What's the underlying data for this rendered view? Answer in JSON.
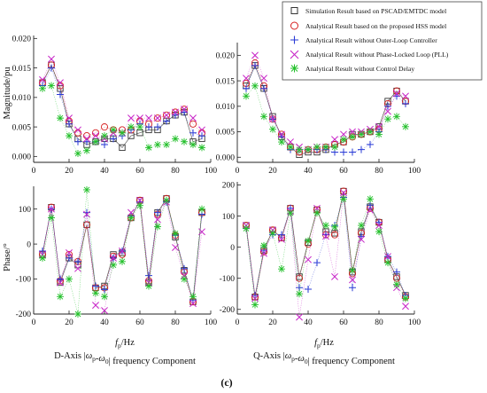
{
  "chart_data": {
    "type": "scatter",
    "legend": {
      "placement": "top-right",
      "entries": [
        {
          "label": "Simulation Result based on PSCAD/EMTDC model",
          "color": "#333333",
          "marker": "square"
        },
        {
          "label": "Analytical Result based on the proposed HSS model",
          "color": "#d62020",
          "marker": "circle"
        },
        {
          "label": "Analytical Result without Outer-Loop Controller",
          "color": "#2a3bd6",
          "marker": "plus"
        },
        {
          "label": "Analytical Result without Phase-Locked Loop (PLL)",
          "color": "#c724c7",
          "marker": "x"
        },
        {
          "label": "Analytical Result without Control Delay",
          "color": "#22c02a",
          "marker": "star"
        }
      ]
    },
    "panel_letter": "(c)",
    "x": [
      5,
      10,
      15,
      20,
      25,
      30,
      35,
      40,
      45,
      50,
      55,
      60,
      65,
      70,
      75,
      80,
      85,
      90,
      95
    ],
    "panels": [
      {
        "id": "d-mag",
        "ylabel": "Magnitude/pu",
        "xlabel": "",
        "xlim": [
          0,
          100
        ],
        "ylim": [
          -0.001,
          0.0205
        ],
        "yticks": [
          0,
          0.005,
          0.01,
          0.015,
          0.02
        ],
        "ytick_labels": [
          "0.000",
          "0.005",
          "0.010",
          "0.015",
          "0.020"
        ],
        "xticks": [
          0,
          20,
          40,
          60,
          80,
          100
        ],
        "xtick_labels": [
          "0",
          "20",
          "40",
          "60",
          "80",
          "100"
        ],
        "series": [
          {
            "values": [
              0.0125,
              0.0155,
              0.0115,
              0.0055,
              0.003,
              0.002,
              0.0025,
              0.003,
              0.003,
              0.0015,
              0.0035,
              0.004,
              0.0045,
              0.0045,
              0.006,
              0.007,
              0.0075,
              0.0025,
              0.003
            ]
          },
          {
            "values": [
              0.0125,
              0.0155,
              0.012,
              0.006,
              0.004,
              0.0035,
              0.004,
              0.005,
              0.0045,
              0.0045,
              0.0045,
              0.006,
              0.0055,
              0.0065,
              0.007,
              0.0075,
              0.008,
              0.0055,
              0.004
            ]
          },
          {
            "values": [
              0.012,
              0.015,
              0.0105,
              0.0055,
              0.0025,
              0.0025,
              0.0025,
              0.002,
              0.003,
              0.0035,
              0.0045,
              0.0055,
              0.005,
              0.005,
              0.006,
              0.007,
              0.0075,
              0.004,
              0.0035
            ]
          },
          {
            "values": [
              0.013,
              0.0165,
              0.0125,
              0.0065,
              0.0045,
              0.003,
              0.0035,
              0.003,
              0.004,
              0.004,
              0.0065,
              0.0065,
              0.0065,
              0.0065,
              0.007,
              0.0075,
              0.008,
              0.0065,
              0.0045
            ]
          },
          {
            "values": [
              0.0115,
              0.012,
              0.0065,
              0.0035,
              0.0005,
              0.001,
              0.0025,
              0.0035,
              0.0045,
              0.004,
              0.005,
              0.005,
              0.0015,
              0.002,
              0.002,
              0.003,
              0.0025,
              0.002,
              0.0015
            ]
          }
        ]
      },
      {
        "id": "q-mag",
        "ylabel": "",
        "xlabel": "",
        "xlim": [
          0,
          100
        ],
        "ylim": [
          -0.001,
          0.0225
        ],
        "yticks": [
          0,
          0.005,
          0.01,
          0.015,
          0.02
        ],
        "ytick_labels": [
          "0.000",
          "0.005",
          "0.010",
          "0.015",
          "0.020"
        ],
        "xticks": [
          0,
          20,
          40,
          60,
          80,
          100
        ],
        "xtick_labels": [
          "0",
          "20",
          "40",
          "60",
          "80",
          "100"
        ],
        "series": [
          {
            "values": [
              0.014,
              0.018,
              0.0135,
              0.008,
              0.004,
              0.002,
              0.0005,
              0.001,
              0.001,
              0.0015,
              0.0025,
              0.003,
              0.0045,
              0.0045,
              0.005,
              0.006,
              0.011,
              0.013,
              0.011
            ]
          },
          {
            "values": [
              0.0145,
              0.0185,
              0.014,
              0.0075,
              0.0045,
              0.002,
              0.001,
              0.0015,
              0.0015,
              0.002,
              0.0025,
              0.003,
              0.004,
              0.0045,
              0.005,
              0.0055,
              0.0105,
              0.013,
              0.011
            ]
          },
          {
            "values": [
              0.0135,
              0.018,
              0.0135,
              0.0075,
              0.004,
              0.0015,
              0.0015,
              0.0015,
              0.0015,
              0.0015,
              0.001,
              0.001,
              0.001,
              0.0015,
              0.0025,
              0.005,
              0.01,
              0.012,
              0.0105
            ]
          },
          {
            "values": [
              0.0155,
              0.02,
              0.0155,
              0.0075,
              0.0045,
              0.003,
              0.002,
              0.0015,
              0.002,
              0.002,
              0.0035,
              0.0045,
              0.005,
              0.005,
              0.0055,
              0.006,
              0.009,
              0.0125,
              0.012
            ]
          },
          {
            "values": [
              0.012,
              0.014,
              0.008,
              0.0055,
              0.003,
              0.002,
              0.0015,
              0.0015,
              0.002,
              0.002,
              0.002,
              0.0035,
              0.004,
              0.0045,
              0.005,
              0.0045,
              0.0075,
              0.008,
              0.006
            ]
          }
        ]
      },
      {
        "id": "d-phase",
        "ylabel": "Phase/°",
        "xlabel": "fp/Hz",
        "xlim": [
          0,
          100
        ],
        "ylim": [
          -200,
          165
        ],
        "yticks": [
          -200,
          -100,
          0,
          100
        ],
        "ytick_labels": [
          "-200",
          "-100",
          "0",
          "100"
        ],
        "xticks": [
          0,
          20,
          40,
          60,
          80,
          100
        ],
        "xtick_labels": [
          "0",
          "20",
          "40",
          "60",
          "80",
          "100"
        ],
        "series": [
          {
            "values": [
              -30,
              105,
              -110,
              -40,
              -60,
              55,
              -125,
              -120,
              -30,
              -25,
              75,
              125,
              -110,
              90,
              130,
              20,
              -75,
              -165,
              90
            ]
          },
          {
            "values": [
              -30,
              105,
              -105,
              -30,
              -50,
              55,
              -125,
              -125,
              -35,
              -30,
              75,
              125,
              -105,
              85,
              130,
              25,
              -80,
              -165,
              90
            ]
          },
          {
            "values": [
              -20,
              100,
              -100,
              -40,
              -50,
              90,
              -120,
              -130,
              -40,
              -20,
              80,
              120,
              -90,
              90,
              120,
              25,
              -70,
              -160,
              85
            ]
          },
          {
            "values": [
              -30,
              100,
              -110,
              -25,
              -70,
              85,
              -175,
              -190,
              -40,
              -20,
              90,
              125,
              -110,
              70,
              120,
              -10,
              -90,
              -170,
              35
            ]
          },
          {
            "values": [
              -40,
              75,
              -150,
              -100,
              -200,
              155,
              -140,
              -150,
              -60,
              -50,
              75,
              110,
              -120,
              50,
              125,
              30,
              -100,
              -150,
              100
            ]
          }
        ]
      },
      {
        "id": "q-phase",
        "ylabel": "",
        "xlabel": "fp/Hz",
        "xlim": [
          0,
          100
        ],
        "ylim": [
          -215,
          210
        ],
        "yticks": [
          -200,
          -100,
          0,
          100,
          200
        ],
        "ytick_labels": [
          "-200",
          "-100",
          "0",
          "100",
          "200"
        ],
        "xticks": [
          0,
          20,
          40,
          60,
          80,
          100
        ],
        "xtick_labels": [
          "0",
          "20",
          "40",
          "60",
          "80",
          "100"
        ],
        "series": [
          {
            "values": [
              70,
              -160,
              -10,
              55,
              30,
              125,
              -95,
              15,
              120,
              50,
              45,
              180,
              -80,
              50,
              130,
              80,
              -40,
              -95,
              -155
            ]
          },
          {
            "values": [
              70,
              -160,
              -15,
              55,
              30,
              125,
              -100,
              10,
              120,
              40,
              40,
              180,
              -85,
              45,
              125,
              80,
              -40,
              -100,
              -160
            ]
          },
          {
            "values": [
              60,
              -155,
              -10,
              40,
              40,
              125,
              -130,
              -135,
              -50,
              40,
              70,
              160,
              -130,
              35,
              135,
              80,
              -30,
              -80,
              -155
            ]
          },
          {
            "values": [
              70,
              -165,
              -20,
              55,
              25,
              115,
              -225,
              -40,
              125,
              35,
              -95,
              175,
              -105,
              25,
              120,
              70,
              -30,
              -130,
              -190
            ]
          },
          {
            "values": [
              60,
              -185,
              5,
              45,
              -70,
              110,
              -150,
              20,
              110,
              70,
              65,
              155,
              -75,
              70,
              155,
              50,
              -50,
              -120,
              -165
            ]
          }
        ]
      }
    ],
    "captions": [
      "D-Axis |ωp-ω0| frequency Component",
      "Q-Axis |ωp-ω0| frequency Component"
    ]
  }
}
